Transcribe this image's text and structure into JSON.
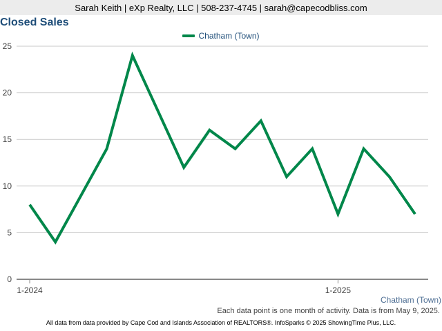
{
  "header": {
    "contact": "Sarah Keith | eXp Realty, LLC | 508-237-4745 | sarah@capecodbliss.com"
  },
  "chart_data": {
    "type": "line",
    "title": "Closed Sales",
    "xlabel": "",
    "ylabel": "",
    "ylim": [
      0,
      25
    ],
    "yticks": [
      0,
      5,
      10,
      15,
      20,
      25
    ],
    "grid": true,
    "legend_position": "top-center",
    "x": [
      "1-2024",
      "2-2024",
      "3-2024",
      "4-2024",
      "5-2024",
      "6-2024",
      "7-2024",
      "8-2024",
      "9-2024",
      "10-2024",
      "11-2024",
      "12-2024",
      "1-2025",
      "2-2025",
      "3-2025",
      "4-2025"
    ],
    "x_tick_labels": [
      {
        "index": 0,
        "label": "1-2024"
      },
      {
        "index": 12,
        "label": "1-2025"
      }
    ],
    "series": [
      {
        "name": "Chatham (Town)",
        "color": "#00874a",
        "values": [
          8,
          4,
          9,
          14,
          24,
          18,
          12,
          16,
          14,
          17,
          11,
          14,
          7,
          14,
          11,
          7
        ]
      }
    ]
  },
  "captions": {
    "series_label": "Chatham (Town)",
    "activity_note": "Each data point is one month of activity. Data is from May 9, 2025."
  },
  "footer": {
    "text": "All data from data provided by Cape Cod and Islands Association of REALTORS®. InfoSparks © 2025 ShowingTime Plus, LLC."
  }
}
